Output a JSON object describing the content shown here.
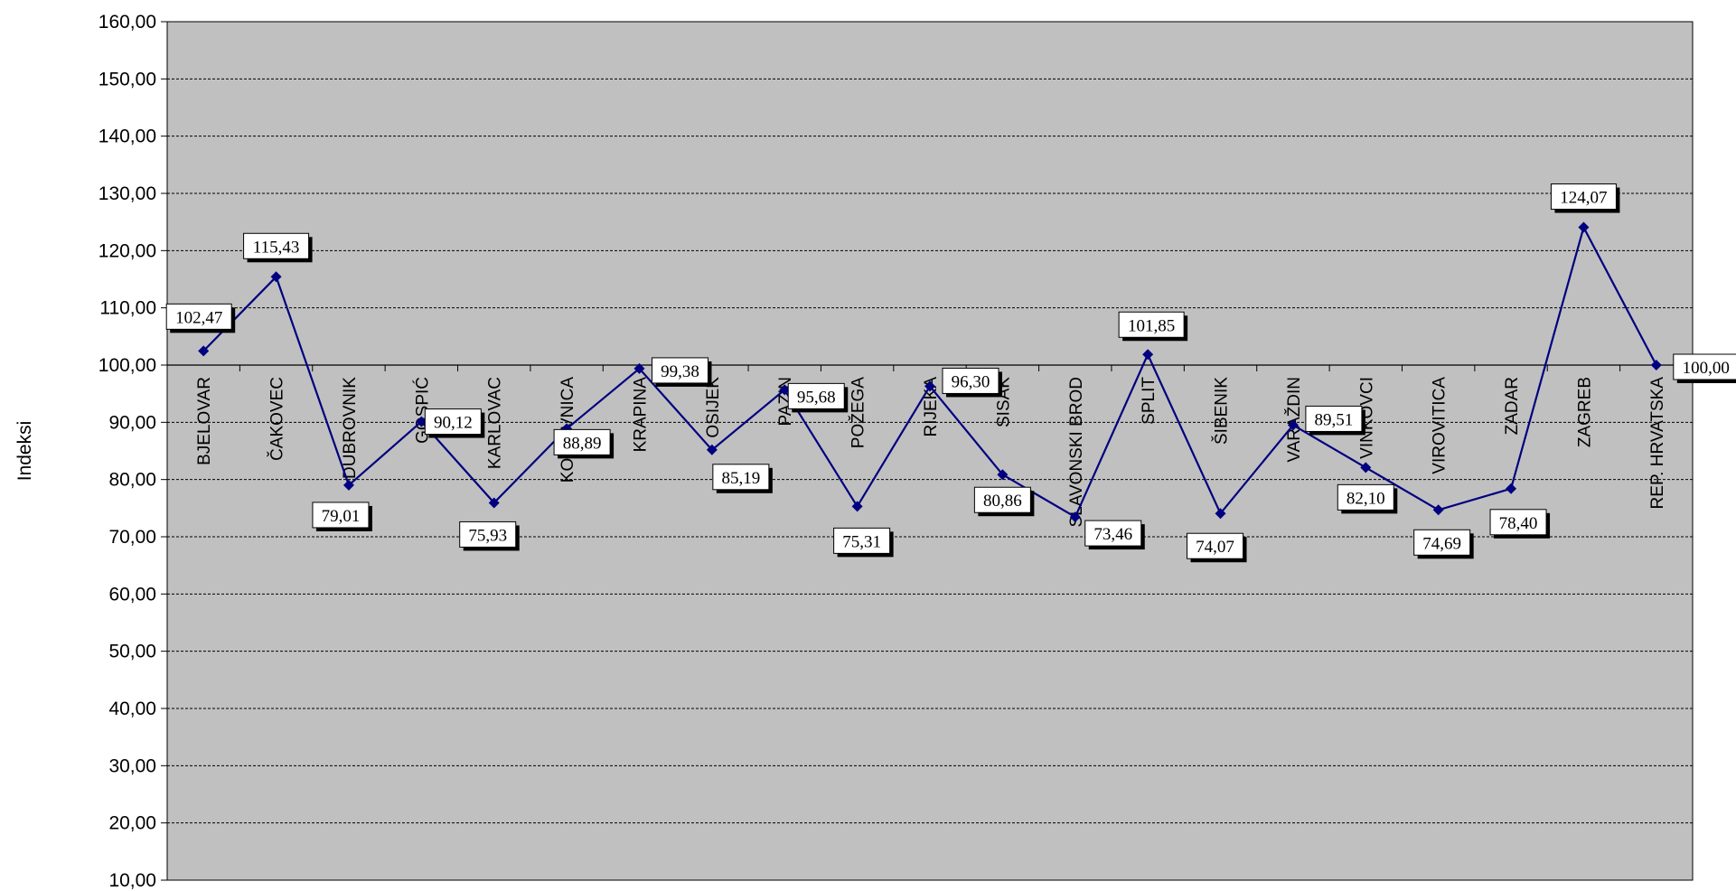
{
  "chart_data": {
    "type": "line",
    "ylabel": "Indeksi",
    "ylim": [
      10,
      160
    ],
    "yticks": [
      "10,00",
      "20,00",
      "30,00",
      "40,00",
      "50,00",
      "60,00",
      "70,00",
      "80,00",
      "90,00",
      "100,00",
      "110,00",
      "120,00",
      "130,00",
      "140,00",
      "150,00",
      "160,00"
    ],
    "baseline": 100,
    "grid": true,
    "colors": {
      "plot_bg": "#c0c0c0",
      "series": "#000080"
    },
    "categories": [
      "BJELOVAR",
      "ČAKOVEC",
      "DUBROVNIK",
      "GOSPIĆ",
      "KARLOVAC",
      "KOPRIVNICA",
      "KRAPINA",
      "OSIJEK",
      "PAZIN",
      "POŽEGA",
      "RIJEKA",
      "SISAK",
      "SLAVONSKI BROD",
      "SPLIT",
      "ŠIBENIK",
      "VARAŽDIN",
      "VINKOVCI",
      "VIROVITICA",
      "ZADAR",
      "ZAGREB",
      "REP. HRVATSKA"
    ],
    "values": [
      102.47,
      115.43,
      79.01,
      90.12,
      75.93,
      88.89,
      99.38,
      85.19,
      95.68,
      75.31,
      96.3,
      80.86,
      73.46,
      101.85,
      74.07,
      89.51,
      82.1,
      74.69,
      78.4,
      124.07,
      100.0
    ],
    "data_labels": [
      "102,47",
      "115,43",
      "79,01",
      "90,12",
      "75,93",
      "88,89",
      "99,38",
      "85,19",
      "95,68",
      "75,31",
      "96,30",
      "80,86",
      "73,46",
      "101,85",
      "74,07",
      "89,51",
      "82,10",
      "74,69",
      "78,40",
      "124,07",
      "100,00"
    ]
  }
}
